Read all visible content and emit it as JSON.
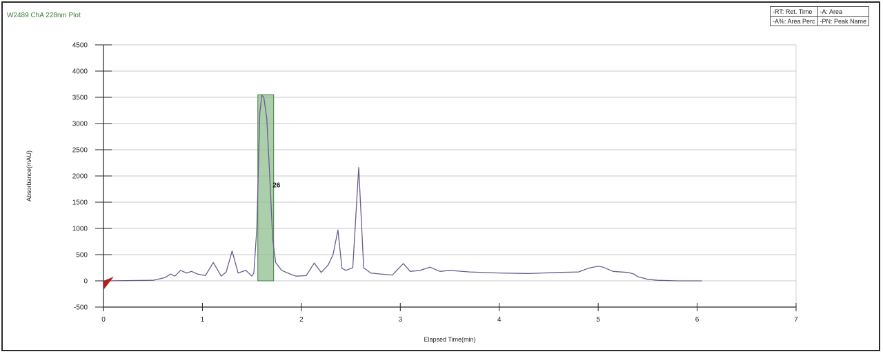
{
  "chart_title": "W2489 ChA 228nm Plot",
  "legend": {
    "rows": [
      [
        "-RT: Ret. Time",
        "-A: Area"
      ],
      [
        "-A%: Area Perc",
        "-PN: Peak Name"
      ]
    ]
  },
  "chart_data": {
    "type": "line",
    "title": "W2489 ChA 228nm Plot",
    "xlabel": "Elapsed Time(min)",
    "ylabel": "Absorbance(mAU)",
    "xlim": [
      0,
      7
    ],
    "ylim": [
      -500,
      4500
    ],
    "xticks": [
      "0",
      "1",
      "2",
      "3",
      "4",
      "5",
      "6",
      "7"
    ],
    "yticks": [
      "-500",
      "0",
      "500",
      "1000",
      "1500",
      "2000",
      "2500",
      "3000",
      "3500",
      "4000",
      "4500"
    ],
    "grid": true,
    "line_color": "#6b5a8e",
    "series": [
      {
        "x": [
          0,
          0.5,
          0.62,
          0.68,
          0.72,
          0.78,
          0.84,
          0.89,
          0.95,
          1.03,
          1.11,
          1.19,
          1.24,
          1.3,
          1.36,
          1.44,
          1.5,
          1.52,
          1.55,
          1.58,
          1.6,
          1.62,
          1.65,
          1.68,
          1.71,
          1.74,
          1.8,
          1.9,
          1.95,
          2.05,
          2.13,
          2.2,
          2.27,
          2.32,
          2.37,
          2.41,
          2.45,
          2.52,
          2.58,
          2.63,
          2.7,
          2.8,
          2.92,
          3.03,
          3.1,
          3.2,
          3.3,
          3.4,
          3.5,
          3.7,
          4.0,
          4.3,
          4.6,
          4.8,
          4.9,
          5.0,
          5.05,
          5.15,
          5.3,
          5.36,
          5.4,
          5.5,
          5.6,
          5.8,
          6.05
        ],
        "y": [
          0,
          10,
          60,
          130,
          90,
          200,
          150,
          180,
          130,
          100,
          350,
          90,
          170,
          570,
          150,
          200,
          90,
          150,
          1000,
          3200,
          3540,
          3500,
          3100,
          2000,
          800,
          350,
          200,
          120,
          90,
          100,
          340,
          160,
          300,
          500,
          970,
          240,
          200,
          250,
          2160,
          250,
          150,
          130,
          110,
          330,
          180,
          200,
          260,
          180,
          200,
          170,
          150,
          140,
          160,
          170,
          240,
          280,
          260,
          180,
          160,
          130,
          80,
          30,
          10,
          0,
          0
        ]
      }
    ],
    "highlight": {
      "x_range": [
        1.56,
        1.72
      ],
      "y_top": 3550,
      "label": "26",
      "label_at": [
        1.71,
        1780
      ],
      "color": "#8fbf8f"
    },
    "marker": {
      "x": 0,
      "y": 0,
      "color": "#b02020"
    }
  }
}
